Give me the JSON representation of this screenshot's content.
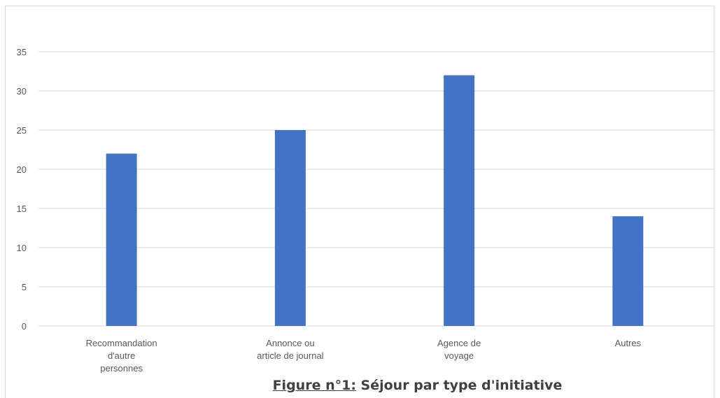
{
  "chart_data": {
    "type": "bar",
    "categories": [
      "Recommandation d'autre personnes",
      "Annonce ou article de journal",
      "Agence de voyage",
      "Autres"
    ],
    "category_lines": [
      [
        "Recommandation",
        "d'autre",
        "personnes"
      ],
      [
        "Annonce ou",
        "article de journal"
      ],
      [
        "Agence de",
        "voyage"
      ],
      [
        "Autres"
      ]
    ],
    "values": [
      22,
      25,
      32,
      14
    ],
    "yticks": [
      0,
      5,
      10,
      15,
      20,
      25,
      30,
      35
    ],
    "ylim": [
      0,
      40
    ],
    "grid": true,
    "bar_color": "#4472c4",
    "grid_color": "#d9d9d9",
    "caption": {
      "lead": "Figure n°1:",
      "text": " Séjour par type d'initiative"
    }
  }
}
